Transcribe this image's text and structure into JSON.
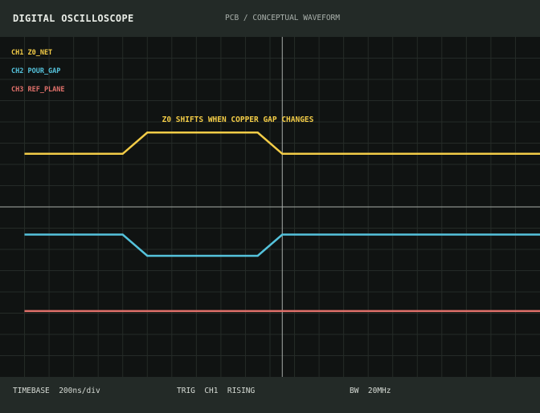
{
  "header": {
    "title": "DIGITAL OSCILLOSCOPE",
    "subtitle": "PCB / CONCEPTUAL WAVEFORM"
  },
  "channels": [
    {
      "label": "CH1 Z0_NET",
      "color": "#f3cc47"
    },
    {
      "label": "CH2 POUR_GAP",
      "color": "#55c3dc"
    },
    {
      "label": "CH3 REF_PLANE",
      "color": "#e0706a"
    }
  ],
  "annotation": {
    "text": "Z0 SHIFTS WHEN COPPER GAP CHANGES",
    "color": "#f3cc47"
  },
  "status": {
    "timebase": "TIMEBASE  200ns/div",
    "trigger": "TRIG  CH1  RISING",
    "bandwidth": "BW  20MHz"
  },
  "colors": {
    "grid": "#252b28",
    "axis": "#a7aca8",
    "screen": "#101312",
    "bar": "#232a27"
  },
  "chart_data": {
    "type": "line",
    "title": "",
    "xlabel": "",
    "ylabel": "",
    "grid": true,
    "xlim": [
      0,
      22
    ],
    "x": [
      1,
      5,
      6,
      10.5,
      11.5,
      22
    ],
    "series": [
      {
        "name": "CH1 Z0_NET",
        "values": [
          2.5,
          2.5,
          3.5,
          3.5,
          2.5,
          2.5
        ]
      },
      {
        "name": "CH2 POUR_GAP",
        "values": [
          -1.3,
          -1.3,
          -2.3,
          -2.3,
          -1.3,
          -1.3
        ]
      },
      {
        "name": "CH3 REF_PLANE",
        "values": [
          -4.9,
          -4.9,
          -4.9,
          -4.9,
          -4.9,
          -4.9
        ]
      }
    ],
    "ylim": [
      -8,
      8
    ],
    "trigger_x": 11.5
  }
}
